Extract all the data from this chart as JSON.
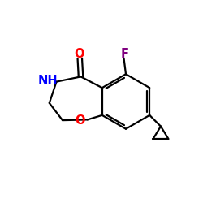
{
  "background_color": "#ffffff",
  "bond_color": "#000000",
  "N_color": "#0000ff",
  "O_color": "#ff0000",
  "F_color": "#800080",
  "lw": 1.6,
  "xlim": [
    0,
    10
  ],
  "ylim": [
    0,
    10
  ]
}
